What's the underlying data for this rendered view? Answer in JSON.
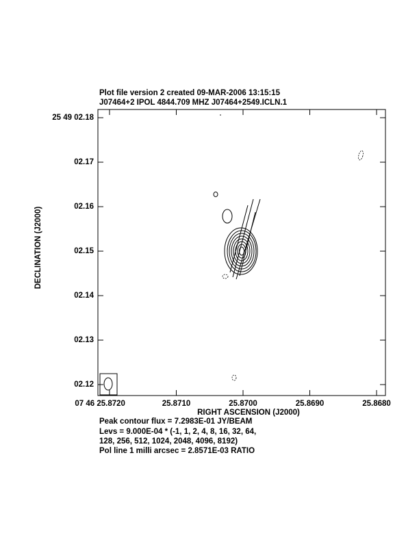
{
  "chart_data": {
    "type": "contour",
    "title": "Plot file version 2  created 09-MAR-2006 13:15:15",
    "subtitle": "J07464+2  IPOL  4844.709 MHZ  J07464+2549.ICLN.1",
    "x_label": "RIGHT ASCENSION (J2000)",
    "y_label": "DECLINATION (J2000)",
    "xlim": [
      25.872174,
      25.867867
    ],
    "ylim": [
      2.117538,
      2.181846
    ],
    "xticks": [
      {
        "value": 25.872,
        "label": "07 46 25.8720"
      },
      {
        "value": 25.871,
        "label": "25.8710"
      },
      {
        "value": 25.87,
        "label": "25.8700"
      },
      {
        "value": 25.869,
        "label": "25.8690"
      },
      {
        "value": 25.868,
        "label": "25.8680"
      }
    ],
    "yticks": [
      {
        "value": 2.18,
        "label": "25 49 02.18"
      },
      {
        "value": 2.17,
        "label": "02.17"
      },
      {
        "value": 2.16,
        "label": "02.16"
      },
      {
        "value": 2.15,
        "label": "02.15"
      },
      {
        "value": 2.14,
        "label": "02.14"
      },
      {
        "value": 2.13,
        "label": "02.13"
      },
      {
        "value": 2.12,
        "label": "02.12"
      }
    ],
    "notes": [
      "Peak contour flux =  7.2983E-01 JY/BEAM",
      "Levs = 9.000E-04 * (-1, 1, 2, 4, 8, 16, 32, 64,",
      "128, 256, 512, 1024, 2048, 4096, 8192)",
      "Pol line 1 milli arcsec =  2.8571E-03 RATIO"
    ]
  }
}
